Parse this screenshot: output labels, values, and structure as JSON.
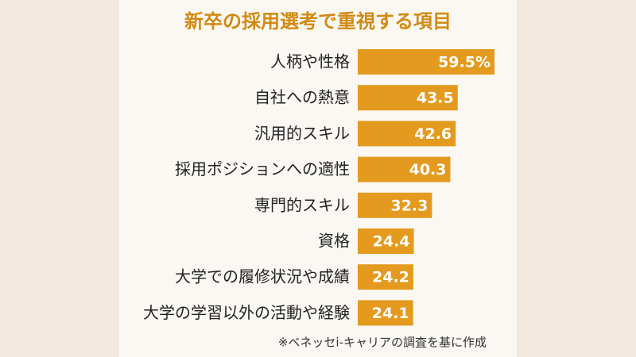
{
  "chart_data": {
    "type": "bar",
    "orientation": "horizontal",
    "title": "新卒の採用選考で重視する項目",
    "categories": [
      "人柄や性格",
      "自社への熱意",
      "汎用的スキル",
      "採用ポジションへの適性",
      "専門的スキル",
      "資格",
      "大学での履修状況や成績",
      "大学の学習以外の活動や経験"
    ],
    "values": [
      59.5,
      43.5,
      42.6,
      40.3,
      32.3,
      24.4,
      24.2,
      24.1
    ],
    "value_labels": [
      "59.5%",
      "43.5",
      "42.6",
      "40.3",
      "32.3",
      "24.4",
      "24.2",
      "24.1"
    ],
    "color": "#e39a1e",
    "title_color": "#d08a12",
    "note": "※ベネッセi-キャリアの調査を基に作成"
  }
}
